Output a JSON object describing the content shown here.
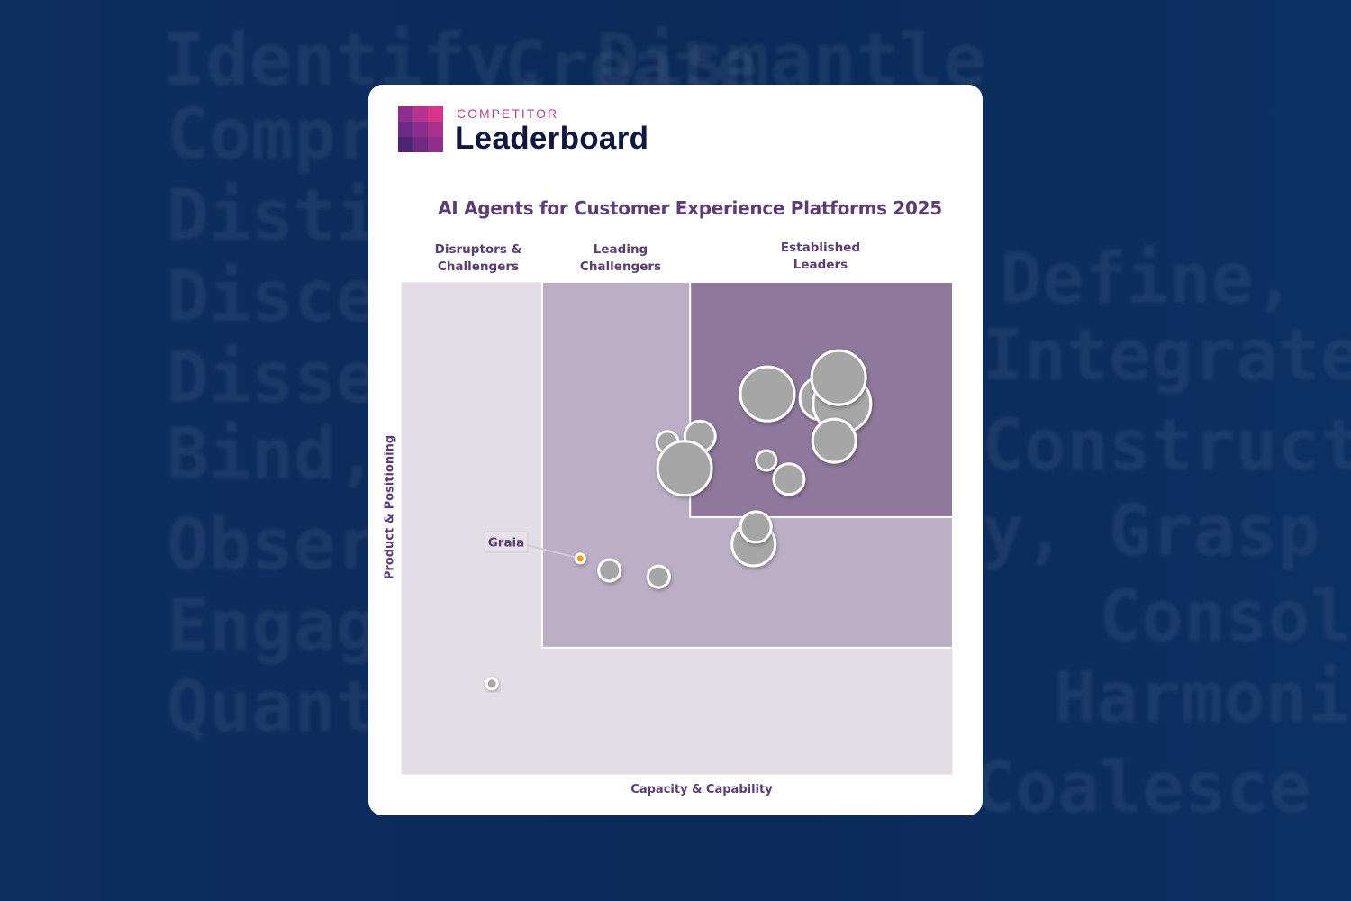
{
  "background": {
    "words": [
      "Identify, Dismantle",
      "Comprehend",
      "Distinguish",
      "Discern,",
      "Dissect,",
      "Bind,",
      "Observe,",
      "Engage,",
      "Quantify",
      "Create",
      "Define,",
      "Integrate,",
      "Construct,",
      "y, Grasp",
      "Consol",
      "Harmonize,",
      "Coalesce"
    ],
    "color": "#0b2c5c"
  },
  "logo": {
    "small": "COMPETITOR",
    "big": "Leaderboard",
    "colors": [
      "#8e2e8e",
      "#b5338f",
      "#d9338a",
      "#6b2a86",
      "#8c2d8c",
      "#a8328c",
      "#4c2470",
      "#6e2a80",
      "#8e2f8c"
    ]
  },
  "chart_data": {
    "type": "scatter",
    "title": "AI Agents for Customer Experience Platforms 2025",
    "xlabel": "Capacity & Capability",
    "ylabel": "Product & Positioning",
    "xlim": [
      0,
      100
    ],
    "ylim": [
      0,
      100
    ],
    "grid": false,
    "regions": [
      {
        "name": "Disruptors & Challengers",
        "x": [
          0,
          100
        ],
        "y": [
          0,
          100
        ],
        "color": "#e3dee6"
      },
      {
        "name": "Leading Challengers",
        "x": [
          25.6,
          100
        ],
        "y": [
          25.8,
          100
        ],
        "color": "#bcafc5"
      },
      {
        "name": "Established Leaders",
        "x": [
          52.4,
          100
        ],
        "y": [
          52.3,
          100
        ],
        "color": "#8e789c"
      }
    ],
    "region_labels": [
      [
        "Disruptors &",
        "Challengers"
      ],
      [
        "Leading",
        "Challengers"
      ],
      [
        "Established",
        "Leaders"
      ]
    ],
    "points": [
      {
        "x": 76.2,
        "y": 76.4,
        "size": 24
      },
      {
        "x": 79.9,
        "y": 75.3,
        "size": 32
      },
      {
        "x": 79.3,
        "y": 80.6,
        "size": 30
      },
      {
        "x": 78.5,
        "y": 67.8,
        "size": 24
      },
      {
        "x": 66.4,
        "y": 77.3,
        "size": 30
      },
      {
        "x": 48.3,
        "y": 67.5,
        "size": 12
      },
      {
        "x": 54.2,
        "y": 68.7,
        "size": 17
      },
      {
        "x": 51.4,
        "y": 62.2,
        "size": 30
      },
      {
        "x": 66.2,
        "y": 63.8,
        "size": 11
      },
      {
        "x": 70.3,
        "y": 60.0,
        "size": 17
      },
      {
        "x": 63.9,
        "y": 46.8,
        "size": 24
      },
      {
        "x": 64.3,
        "y": 50.3,
        "size": 17
      },
      {
        "x": 46.7,
        "y": 40.2,
        "size": 12
      },
      {
        "x": 37.8,
        "y": 41.5,
        "size": 12
      },
      {
        "x": 16.5,
        "y": 18.5,
        "size": 6
      },
      {
        "x": 32.5,
        "y": 43.9,
        "size": 5,
        "label": "Graia",
        "highlight": true
      }
    ],
    "bubble_color": "#a6a6a6",
    "highlight_color": "#f4a000"
  }
}
